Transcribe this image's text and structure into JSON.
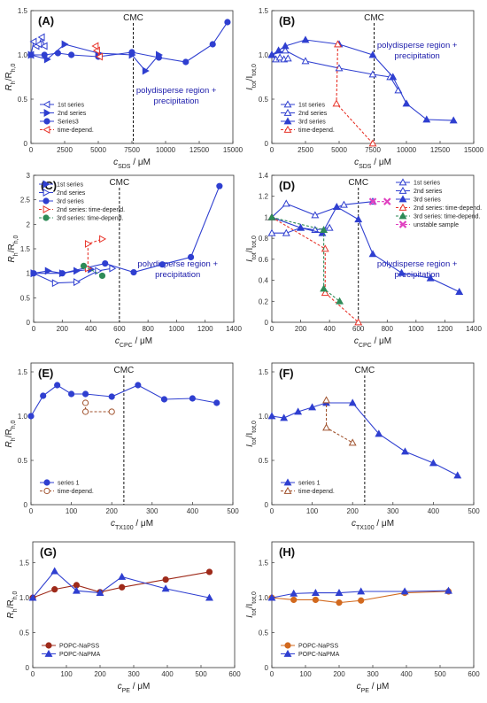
{
  "colors": {
    "blue": "#2f3fd0",
    "red": "#e8342a",
    "darkred": "#9e2a1a",
    "brown": "#a0522d",
    "orange": "#d2691e",
    "green": "#2e8b57",
    "magenta": "#e040c0",
    "axis": "#333333"
  },
  "chart_data": [
    {
      "id": "A",
      "type": "line",
      "tag": "(A)",
      "xlabel_main": "c",
      "xlabel_sub": "SDS",
      "xlabel_unit": " / μM",
      "ylabel_main": "R",
      "ylabel_sub": "h",
      "ylabel_den": "/R",
      "ylabel_den_sub": "h,0",
      "xlim": [
        0,
        15000
      ],
      "ylim": [
        0,
        1.5
      ],
      "xticks": [
        0,
        2500,
        5000,
        7500,
        10000,
        12500,
        15000
      ],
      "yticks": [
        0,
        0.5,
        1.0,
        1.5
      ],
      "ytick_labels": [
        "0",
        "0.5",
        "1.0",
        "1.5"
      ],
      "cmc": 7600,
      "cmc_label": "CMC",
      "annotation": "polydisperse region + precipitation",
      "series": [
        {
          "name": "1st series",
          "color": "#2f3fd0",
          "marker": "tri-left",
          "filled": false,
          "dashed": false,
          "x": [
            0,
            200,
            400,
            600,
            800,
            1000
          ],
          "y": [
            1.0,
            1.15,
            1.1,
            1.12,
            1.2,
            1.1
          ]
        },
        {
          "name": "2nd series",
          "color": "#2f3fd0",
          "marker": "tri-right",
          "filled": true,
          "dashed": false,
          "x": [
            0,
            1200,
            2500,
            5000,
            7500,
            8500,
            9500
          ],
          "y": [
            1.0,
            0.95,
            1.12,
            1.02,
            1.0,
            0.82,
            1.0
          ]
        },
        {
          "name": "Series3",
          "color": "#2f3fd0",
          "marker": "circle",
          "filled": true,
          "dashed": false,
          "x": [
            0,
            1000,
            2000,
            3000,
            5000,
            7500,
            9500,
            11500,
            13500,
            14600
          ],
          "y": [
            1.0,
            1.0,
            1.02,
            1.0,
            0.98,
            1.03,
            0.97,
            0.92,
            1.12,
            1.37
          ]
        },
        {
          "name": "time-depend.",
          "color": "#e8342a",
          "marker": "tri-left",
          "filled": false,
          "dashed": true,
          "x": [
            4900,
            5100,
            4800
          ],
          "y": [
            1.05,
            0.98,
            1.1
          ]
        }
      ],
      "legend_pos": "bottom-left"
    },
    {
      "id": "B",
      "type": "line",
      "tag": "(B)",
      "xlabel_main": "c",
      "xlabel_sub": "SDS",
      "xlabel_unit": " / μM",
      "ylabel_main": "I",
      "ylabel_sub": "tot",
      "ylabel_den": "/I",
      "ylabel_den_sub": "tot,0",
      "xlim": [
        0,
        15000
      ],
      "ylim": [
        0,
        1.5
      ],
      "xticks": [
        0,
        2500,
        5000,
        7500,
        10000,
        12500,
        15000
      ],
      "yticks": [
        0,
        0.5,
        1.0,
        1.5
      ],
      "ytick_labels": [
        "0",
        "0.5",
        "1.0",
        "1.5"
      ],
      "cmc": 7600,
      "cmc_label": "CMC",
      "annotation": "polydisperse region + precipitation",
      "series": [
        {
          "name": "1st series",
          "color": "#2f3fd0",
          "marker": "tri-up",
          "filled": false,
          "dashed": false,
          "x": [
            0,
            300,
            600,
            900,
            1200
          ],
          "y": [
            1.0,
            0.95,
            0.97,
            0.95,
            0.96
          ]
        },
        {
          "name": "2nd series",
          "color": "#2f3fd0",
          "marker": "tri-up",
          "filled": false,
          "dashed": false,
          "x": [
            0,
            1000,
            2500,
            5000,
            7500,
            8800,
            9400
          ],
          "y": [
            1.0,
            1.05,
            0.93,
            0.85,
            0.78,
            0.75,
            0.6
          ]
        },
        {
          "name": "3rd series",
          "color": "#2f3fd0",
          "marker": "tri-up",
          "filled": true,
          "dashed": false,
          "x": [
            0,
            500,
            1000,
            2500,
            5000,
            7500,
            9000,
            10000,
            11500,
            13500
          ],
          "y": [
            1.0,
            1.05,
            1.1,
            1.17,
            1.12,
            1.0,
            0.75,
            0.45,
            0.27,
            0.26
          ]
        },
        {
          "name": "time-depend.",
          "color": "#e8342a",
          "marker": "tri-up",
          "filled": false,
          "dashed": true,
          "x": [
            4900,
            4800,
            7500
          ],
          "y": [
            1.12,
            0.45,
            0.0
          ]
        }
      ],
      "legend_pos": "bottom-left"
    },
    {
      "id": "C",
      "type": "line",
      "tag": "(C)",
      "xlabel_main": "c",
      "xlabel_sub": "CPC",
      "xlabel_unit": " / μM",
      "ylabel_main": "R",
      "ylabel_sub": "h",
      "ylabel_den": "/R",
      "ylabel_den_sub": "h,0",
      "xlim": [
        0,
        1400
      ],
      "ylim": [
        0,
        3
      ],
      "xticks": [
        0,
        200,
        400,
        600,
        800,
        1000,
        1200,
        1400
      ],
      "xtick_labels": [
        "0",
        "200",
        "400",
        "600",
        "800",
        "1000",
        "1200",
        "1400"
      ],
      "yticks": [
        0,
        0.5,
        1.0,
        1.5,
        2.0,
        2.5,
        3.0
      ],
      "ytick_labels": [
        "0",
        "0.5",
        "1",
        "1.5",
        "2",
        "2.5",
        "3"
      ],
      "cmc": 600,
      "cmc_label": "CMC",
      "annotation": "polydisperse region + precipitation",
      "series": [
        {
          "name": "1st series",
          "color": "#2f3fd0",
          "marker": "tri-right",
          "filled": true,
          "dashed": false,
          "x": [
            0,
            100,
            200,
            300,
            400
          ],
          "y": [
            1.0,
            1.05,
            1.0,
            1.05,
            1.08
          ]
        },
        {
          "name": "2nd series",
          "color": "#2f3fd0",
          "marker": "tri-right",
          "filled": false,
          "dashed": false,
          "x": [
            0,
            150,
            300,
            450,
            550
          ],
          "y": [
            1.0,
            0.8,
            0.82,
            1.05,
            1.1
          ]
        },
        {
          "name": "3rd series",
          "color": "#2f3fd0",
          "marker": "circle",
          "filled": true,
          "dashed": false,
          "x": [
            0,
            200,
            500,
            700,
            900,
            1100,
            1300
          ],
          "y": [
            1.0,
            1.0,
            1.2,
            1.02,
            1.18,
            1.33,
            2.78
          ]
        },
        {
          "name": "2nd series: time-depend.",
          "color": "#e8342a",
          "marker": "tri-right",
          "filled": false,
          "dashed": true,
          "x": [
            380,
            380,
            480
          ],
          "y": [
            1.1,
            1.6,
            1.7
          ]
        },
        {
          "name": "3rd series: time-depend.",
          "color": "#2e8b57",
          "marker": "circle",
          "filled": true,
          "dashed": true,
          "x": [
            350,
            480
          ],
          "y": [
            1.15,
            0.95
          ]
        }
      ],
      "legend_pos": "top-left"
    },
    {
      "id": "D",
      "type": "line",
      "tag": "(D)",
      "xlabel_main": "c",
      "xlabel_sub": "CPC",
      "xlabel_unit": " / μM",
      "ylabel_main": "I",
      "ylabel_sub": "tot",
      "ylabel_den": "/I",
      "ylabel_den_sub": "tot,0",
      "xlim": [
        0,
        1400
      ],
      "ylim": [
        0,
        1.4
      ],
      "xticks": [
        0,
        200,
        400,
        600,
        800,
        1000,
        1200,
        1400
      ],
      "xtick_labels": [
        "0",
        "200",
        "400",
        "600",
        "800",
        "1000",
        "1200",
        "1400"
      ],
      "yticks": [
        0,
        0.2,
        0.4,
        0.6,
        0.8,
        1.0,
        1.2,
        1.4
      ],
      "ytick_labels": [
        "0",
        "0.2",
        "0.4",
        "0.6",
        "0.8",
        "1",
        "1.2",
        "1.4"
      ],
      "cmc": 600,
      "cmc_label": "CMC",
      "annotation": "polydisperse region + precipitation",
      "series": [
        {
          "name": "1st series",
          "color": "#2f3fd0",
          "marker": "tri-up",
          "filled": false,
          "dashed": false,
          "x": [
            0,
            100,
            200,
            300,
            400
          ],
          "y": [
            0.85,
            0.85,
            0.9,
            0.88,
            0.9
          ]
        },
        {
          "name": "2nd series",
          "color": "#2f3fd0",
          "marker": "tri-up",
          "filled": false,
          "dashed": false,
          "x": [
            0,
            100,
            300,
            500,
            700
          ],
          "y": [
            1.0,
            1.13,
            1.02,
            1.12,
            1.15
          ]
        },
        {
          "name": "3rd series",
          "color": "#2f3fd0",
          "marker": "tri-up",
          "filled": true,
          "dashed": false,
          "x": [
            0,
            200,
            350,
            450,
            600,
            700,
            900,
            1100,
            1300
          ],
          "y": [
            1.0,
            0.9,
            0.85,
            1.1,
            0.98,
            0.65,
            0.47,
            0.42,
            0.29
          ]
        },
        {
          "name": "2nd series: time-depend.",
          "color": "#e8342a",
          "marker": "tri-up",
          "filled": false,
          "dashed": true,
          "x": [
            0,
            370,
            370,
            600
          ],
          "y": [
            1.0,
            0.7,
            0.28,
            0.0
          ]
        },
        {
          "name": "3rd series: time-depend.",
          "color": "#2e8b57",
          "marker": "tri-up",
          "filled": true,
          "dashed": true,
          "x": [
            0,
            360,
            360,
            470
          ],
          "y": [
            1.0,
            0.88,
            0.32,
            0.2
          ]
        },
        {
          "name": "unstable sample",
          "color": "#e040c0",
          "marker": "x",
          "filled": false,
          "dashed": true,
          "x": [
            700,
            800
          ],
          "y": [
            1.15,
            1.15
          ]
        }
      ],
      "legend_pos": "top-right"
    },
    {
      "id": "E",
      "type": "line",
      "tag": "(E)",
      "xlabel_main": "c",
      "xlabel_sub": "TX100",
      "xlabel_unit": " / μM",
      "ylabel_main": "R",
      "ylabel_sub": "h",
      "ylabel_den": "/R",
      "ylabel_den_sub": "h,0",
      "xlim": [
        0,
        500
      ],
      "ylim": [
        0,
        1.6
      ],
      "xticks": [
        0,
        100,
        200,
        300,
        400,
        500
      ],
      "yticks": [
        0,
        0.5,
        1.0,
        1.5
      ],
      "ytick_labels": [
        "0",
        "0.5",
        "1.0",
        "1.5"
      ],
      "cmc": 230,
      "cmc_label": "CMC",
      "annotation": "",
      "series": [
        {
          "name": "series 1",
          "color": "#2f3fd0",
          "marker": "circle",
          "filled": true,
          "dashed": false,
          "x": [
            0,
            30,
            65,
            100,
            135,
            200,
            265,
            330,
            400,
            460
          ],
          "y": [
            1.0,
            1.23,
            1.35,
            1.25,
            1.25,
            1.22,
            1.35,
            1.19,
            1.2,
            1.15
          ]
        },
        {
          "name": "time-depend.",
          "color": "#a0522d",
          "marker": "circle",
          "filled": false,
          "dashed": true,
          "x": [
            135,
            135,
            200
          ],
          "y": [
            1.15,
            1.05,
            1.05
          ]
        }
      ],
      "legend_pos": "bottom-left"
    },
    {
      "id": "F",
      "type": "line",
      "tag": "(F)",
      "xlabel_main": "c",
      "xlabel_sub": "TX100",
      "xlabel_unit": " / μM",
      "ylabel_main": "I",
      "ylabel_sub": "tot",
      "ylabel_den": "/I",
      "ylabel_den_sub": "tot,0",
      "xlim": [
        0,
        500
      ],
      "ylim": [
        0,
        1.6
      ],
      "xticks": [
        0,
        100,
        200,
        300,
        400,
        500
      ],
      "yticks": [
        0,
        0.5,
        1.0,
        1.5
      ],
      "ytick_labels": [
        "0",
        "0.5",
        "1.0",
        "1.5"
      ],
      "cmc": 230,
      "cmc_label": "CMC",
      "annotation": "",
      "series": [
        {
          "name": "series 1",
          "color": "#2f3fd0",
          "marker": "tri-up",
          "filled": true,
          "dashed": false,
          "x": [
            0,
            30,
            65,
            100,
            135,
            200,
            265,
            330,
            400,
            460
          ],
          "y": [
            1.0,
            0.98,
            1.05,
            1.1,
            1.15,
            1.15,
            0.8,
            0.6,
            0.47,
            0.33
          ]
        },
        {
          "name": "time-depend.",
          "color": "#a0522d",
          "marker": "tri-up",
          "filled": false,
          "dashed": true,
          "x": [
            135,
            135,
            200
          ],
          "y": [
            1.18,
            0.87,
            0.7
          ]
        }
      ],
      "legend_pos": "bottom-left"
    },
    {
      "id": "G",
      "type": "line",
      "tag": "(G)",
      "xlabel_main": "c",
      "xlabel_sub": "PE",
      "xlabel_unit": " / μM",
      "ylabel_main": "R",
      "ylabel_sub": "h",
      "ylabel_den": "/R",
      "ylabel_den_sub": "h,0",
      "xlim": [
        0,
        600
      ],
      "ylim": [
        0,
        1.8
      ],
      "xticks": [
        0,
        100,
        200,
        300,
        400,
        500,
        600
      ],
      "yticks": [
        0,
        0.5,
        1.0,
        1.5
      ],
      "ytick_labels": [
        "0",
        "0.5",
        "1.0",
        "1.5"
      ],
      "cmc": null,
      "cmc_label": "",
      "annotation": "",
      "series": [
        {
          "name": "POPC-NaPSS",
          "color": "#9e2a1a",
          "marker": "circle",
          "filled": true,
          "dashed": false,
          "x": [
            0,
            65,
            130,
            200,
            265,
            395,
            525
          ],
          "y": [
            1.0,
            1.12,
            1.18,
            1.08,
            1.15,
            1.26,
            1.37
          ]
        },
        {
          "name": "POPC-NaPMA",
          "color": "#2f3fd0",
          "marker": "tri-up",
          "filled": true,
          "dashed": false,
          "x": [
            0,
            65,
            130,
            200,
            265,
            395,
            525
          ],
          "y": [
            1.0,
            1.38,
            1.1,
            1.07,
            1.3,
            1.13,
            1.0
          ]
        }
      ],
      "legend_pos": "bottom-left"
    },
    {
      "id": "H",
      "type": "line",
      "tag": "(H)",
      "xlabel_main": "c",
      "xlabel_sub": "PE",
      "xlabel_unit": " / μM",
      "ylabel_main": "I",
      "ylabel_sub": "tot",
      "ylabel_den": "/I",
      "ylabel_den_sub": "tot,0",
      "xlim": [
        0,
        600
      ],
      "ylim": [
        0,
        1.8
      ],
      "xticks": [
        0,
        100,
        200,
        300,
        400,
        500,
        600
      ],
      "yticks": [
        0,
        0.5,
        1.0,
        1.5
      ],
      "ytick_labels": [
        "0",
        "0.5",
        "1.0",
        "1.5"
      ],
      "cmc": null,
      "cmc_label": "",
      "annotation": "",
      "series": [
        {
          "name": "POPC-NaPSS",
          "color": "#d2691e",
          "marker": "circle",
          "filled": true,
          "dashed": false,
          "x": [
            0,
            65,
            130,
            200,
            265,
            395,
            525
          ],
          "y": [
            1.0,
            0.97,
            0.97,
            0.93,
            0.96,
            1.07,
            1.09
          ]
        },
        {
          "name": "POPC-NaPMA",
          "color": "#2f3fd0",
          "marker": "tri-up",
          "filled": true,
          "dashed": false,
          "x": [
            0,
            65,
            130,
            200,
            265,
            395,
            525
          ],
          "y": [
            1.0,
            1.06,
            1.07,
            1.07,
            1.09,
            1.09,
            1.1
          ]
        }
      ],
      "legend_pos": "bottom-left"
    }
  ]
}
